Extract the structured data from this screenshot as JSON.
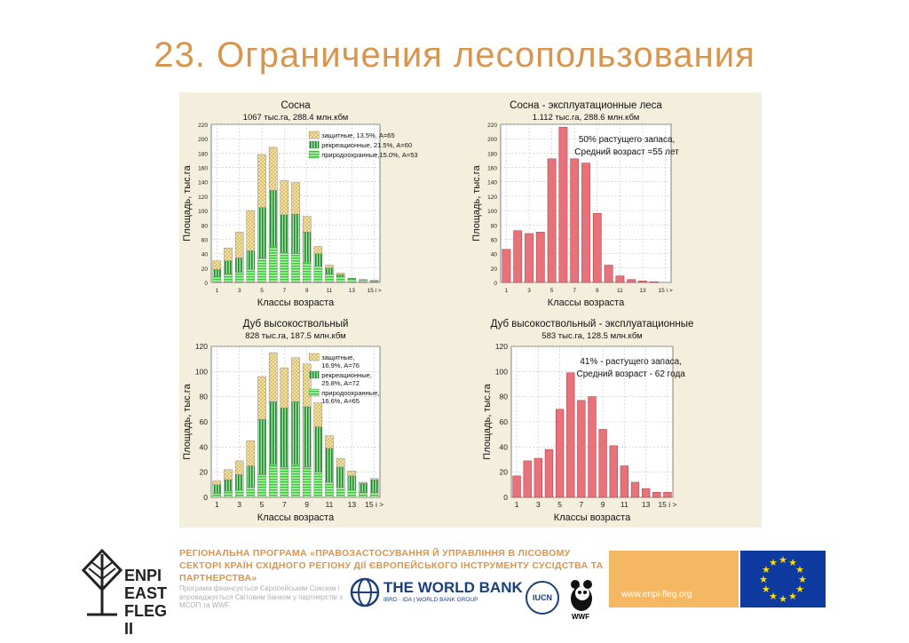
{
  "slide": {
    "title": "23. Ограничения лесопользования"
  },
  "chart_data": [
    {
      "type": "bar",
      "title": "Сосна",
      "subtitle": "1067 тыс.га, 288.4 млн.кбм",
      "xlabel": "Классы возраста",
      "ylabel": "Площадь, тыс.га",
      "ylim": [
        0,
        220
      ],
      "yticks": [
        "0",
        "20",
        "40",
        "60",
        "80",
        "100",
        "120",
        "140",
        "160",
        "180",
        "200",
        "220"
      ],
      "xtick_labels": [
        "1",
        "3",
        "5",
        "7",
        "9",
        "11",
        "13",
        "15 і >"
      ],
      "categories": [
        "1",
        "2",
        "3",
        "4",
        "5",
        "6",
        "7",
        "8",
        "9",
        "10",
        "11",
        "12",
        "13",
        "14",
        "15 і >"
      ],
      "stacked": true,
      "series": [
        {
          "name": "природоохранные,15.0%, A=53",
          "values": [
            8,
            12,
            14,
            18,
            34,
            50,
            42,
            40,
            28,
            22,
            12,
            8,
            5,
            3,
            2
          ],
          "color": "#6fd66f",
          "pattern": "hstripe"
        },
        {
          "name": "рекреационные, 21.5%, A=60",
          "values": [
            10,
            18,
            20,
            26,
            70,
            78,
            52,
            55,
            42,
            18,
            8,
            3,
            1,
            1,
            1
          ],
          "color": "#2e9a3a",
          "pattern": "vstripe"
        },
        {
          "name": "защитные, 13.5%, A=65",
          "values": [
            12,
            18,
            36,
            56,
            74,
            60,
            48,
            44,
            22,
            10,
            4,
            2,
            0,
            0,
            0
          ],
          "color": "#f2dd8a",
          "pattern": "cross"
        }
      ],
      "legend": "top-right"
    },
    {
      "type": "bar",
      "title": "Сосна - эксплуатационные леса",
      "subtitle": "1.112 тыс.га, 288.6 млн.кбм",
      "xlabel": "Классы возраста",
      "ylabel": "Площадь, тыс.га",
      "ylim": [
        0,
        220
      ],
      "yticks": [
        "0",
        "20",
        "40",
        "60",
        "80",
        "100",
        "120",
        "140",
        "160",
        "180",
        "200",
        "220"
      ],
      "xtick_labels": [
        "1",
        "3",
        "5",
        "7",
        "9",
        "11",
        "13",
        "15 і >"
      ],
      "categories": [
        "1",
        "2",
        "3",
        "4",
        "5",
        "6",
        "7",
        "8",
        "9",
        "10",
        "11",
        "12",
        "13",
        "14",
        "15 і >"
      ],
      "series": [
        {
          "name": "",
          "values": [
            46,
            72,
            68,
            70,
            172,
            216,
            172,
            166,
            96,
            24,
            9,
            4,
            2,
            1,
            0
          ],
          "color": "#e8727a"
        }
      ],
      "annotation": "50% растущего запаса,\nСредний возраст =55 лет"
    },
    {
      "type": "bar",
      "title": "Дуб высокоствольный",
      "subtitle": "828 тыс.га, 187.5 млн.кбм",
      "xlabel": "Классы возраста",
      "ylabel": "Площадь, тыс.га",
      "ylim": [
        0,
        120
      ],
      "yticks": [
        "0",
        "20",
        "40",
        "60",
        "80",
        "100",
        "120"
      ],
      "xtick_labels": [
        "1",
        "3",
        "5",
        "7",
        "9",
        "11",
        "13",
        "15 і >"
      ],
      "categories": [
        "1",
        "2",
        "3",
        "4",
        "5",
        "6",
        "7",
        "8",
        "9",
        "10",
        "11",
        "12",
        "13",
        "14",
        "15 і >"
      ],
      "stacked": true,
      "series": [
        {
          "name": "природоохранные,\n16.6%, A=65",
          "values": [
            3,
            5,
            6,
            8,
            18,
            26,
            24,
            26,
            24,
            20,
            12,
            8,
            6,
            4,
            4
          ],
          "color": "#6fd66f",
          "pattern": "hstripe"
        },
        {
          "name": "рекреационные,\n25.8%, A=72",
          "values": [
            7,
            9,
            12,
            17,
            44,
            50,
            47,
            50,
            48,
            36,
            27,
            16,
            11,
            7,
            10
          ],
          "color": "#2e9a3a",
          "pattern": "vstripe"
        },
        {
          "name": "защитные,\n16.9%, A=76",
          "values": [
            3,
            8,
            11,
            20,
            34,
            39,
            32,
            35,
            34,
            19,
            10,
            7,
            4,
            1,
            1
          ],
          "color": "#f2dd8a",
          "pattern": "cross"
        }
      ],
      "legend": "top-right"
    },
    {
      "type": "bar",
      "title": "Дуб высокоствольный - эксплуатационные",
      "subtitle": "583 тыс.га, 128.5 млн.кбм",
      "xlabel": "Классы возраста",
      "ylabel": "Площадь, тыс.га",
      "ylim": [
        0,
        120
      ],
      "yticks": [
        "0",
        "20",
        "40",
        "60",
        "80",
        "100",
        "120"
      ],
      "xtick_labels": [
        "1",
        "3",
        "5",
        "7",
        "9",
        "11",
        "13",
        "15 і >"
      ],
      "categories": [
        "1",
        "2",
        "3",
        "4",
        "5",
        "6",
        "7",
        "8",
        "9",
        "10",
        "11",
        "12",
        "13",
        "14",
        "15 і >"
      ],
      "series": [
        {
          "name": "",
          "values": [
            17,
            29,
            31,
            38,
            70,
            99,
            77,
            80,
            54,
            41,
            25,
            12,
            7,
            4,
            4
          ],
          "color": "#e8727a"
        }
      ],
      "annotation": "41% - растущего запаса,\nСредний возраст - 62 года"
    }
  ],
  "footer": {
    "program_text": "РЕГІОНАЛЬНА ПРОГРАМА «ПРАВОЗАСТОСУВАННЯ Й УПРАВЛІННЯ В ЛІСОВОМУ СЕКТОРІ КРАЇН СХІДНОГО РЕГІОНУ ДІЇ ЄВРОПЕЙСЬКОГО ІНСТРУМЕНТУ СУСІДСТВА ТА ПАРТНЕРСТВА»",
    "funding_text": "Програма фінансується Європейським Союзом і впроваджується Світовим банком у партнерстві з МСОП та WWF.",
    "enpi_logo": "ENPI EAST FLEG II",
    "world_bank": "THE WORLD BANK",
    "world_bank_sub": "IBRD · IDA | WORLD BANK GROUP",
    "iucn": "IUCN",
    "wwf": "WWF",
    "website": "www.enpi-fleg.org",
    "colors": {
      "accent": "#d9954e",
      "orange_block": "#f4b862",
      "eu_blue": "#0f3aa0",
      "eu_star": "#ffdd00"
    }
  }
}
